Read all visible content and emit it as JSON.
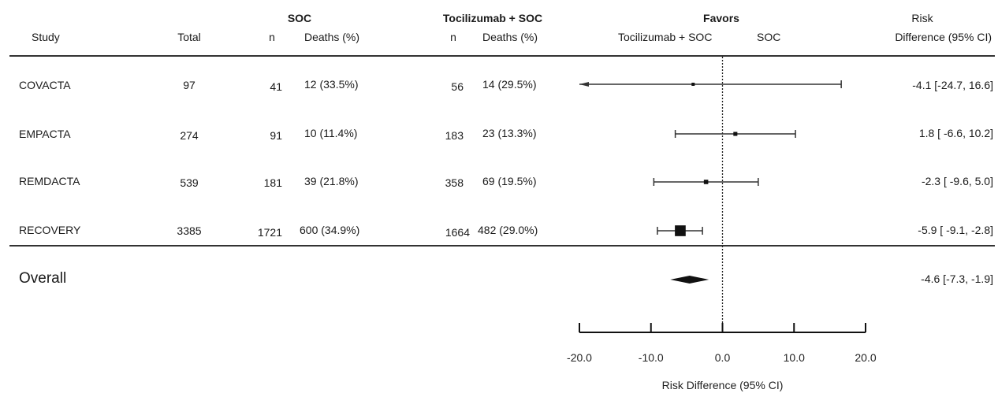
{
  "header": {
    "study": "Study",
    "total": "Total",
    "soc_group": "SOC",
    "toci_group": "Tocilizumab + SOC",
    "n": "n",
    "deaths": "Deaths (%)",
    "favors": "Favors",
    "favors_toci": "Tocilizumab + SOC",
    "favors_soc": "SOC",
    "risk_line1": "Risk",
    "risk_line2": "Difference (95% CI)"
  },
  "rows": [
    {
      "study": "COVACTA",
      "total": "97",
      "soc_n": "41",
      "soc_deaths": "12 (33.5%)",
      "toci_n": "56",
      "toci_deaths": "14 (29.5%)",
      "ci_text": "-4.1 [-24.7, 16.6]"
    },
    {
      "study": "EMPACTA",
      "total": "274",
      "soc_n": "91",
      "soc_deaths": "10 (11.4%)",
      "toci_n": "183",
      "toci_deaths": "23 (13.3%)",
      "ci_text": "1.8 [ -6.6, 10.2]"
    },
    {
      "study": "REMDACTA",
      "total": "539",
      "soc_n": "181",
      "soc_deaths": "39 (21.8%)",
      "toci_n": "358",
      "toci_deaths": "69 (19.5%)",
      "ci_text": "-2.3 [ -9.6, 5.0]"
    },
    {
      "study": "RECOVERY",
      "total": "3385",
      "soc_n": "1721",
      "soc_deaths": "600 (34.9%)",
      "toci_n": "1664",
      "toci_deaths": "482 (29.0%)",
      "ci_text": "-5.9 [ -9.1, -2.8]"
    }
  ],
  "overall": {
    "label": "Overall",
    "ci_text": "-4.6 [-7.3, -1.9]"
  },
  "chart_data": {
    "type": "forest",
    "xlabel": "Risk Difference (95% CI)",
    "xlim": [
      -20,
      20
    ],
    "xticks": [
      -20,
      -10,
      0,
      10,
      20
    ],
    "xtick_labels": [
      "-20.0",
      "-10.0",
      "0.0",
      "10.0",
      "20.0"
    ],
    "reference_line": 0,
    "studies": [
      {
        "name": "COVACTA",
        "estimate": -4.1,
        "lower": -24.7,
        "upper": 16.6,
        "weight": 0.05,
        "arrow_left": true
      },
      {
        "name": "EMPACTA",
        "estimate": 1.8,
        "lower": -6.6,
        "upper": 10.2,
        "weight": 0.1,
        "arrow_left": false
      },
      {
        "name": "REMDACTA",
        "estimate": -2.3,
        "lower": -9.6,
        "upper": 5.0,
        "weight": 0.12,
        "arrow_left": false
      },
      {
        "name": "RECOVERY",
        "estimate": -5.9,
        "lower": -9.1,
        "upper": -2.8,
        "weight": 0.73,
        "arrow_left": false
      }
    ],
    "overall": {
      "estimate": -4.6,
      "lower": -7.3,
      "upper": -1.9
    }
  }
}
